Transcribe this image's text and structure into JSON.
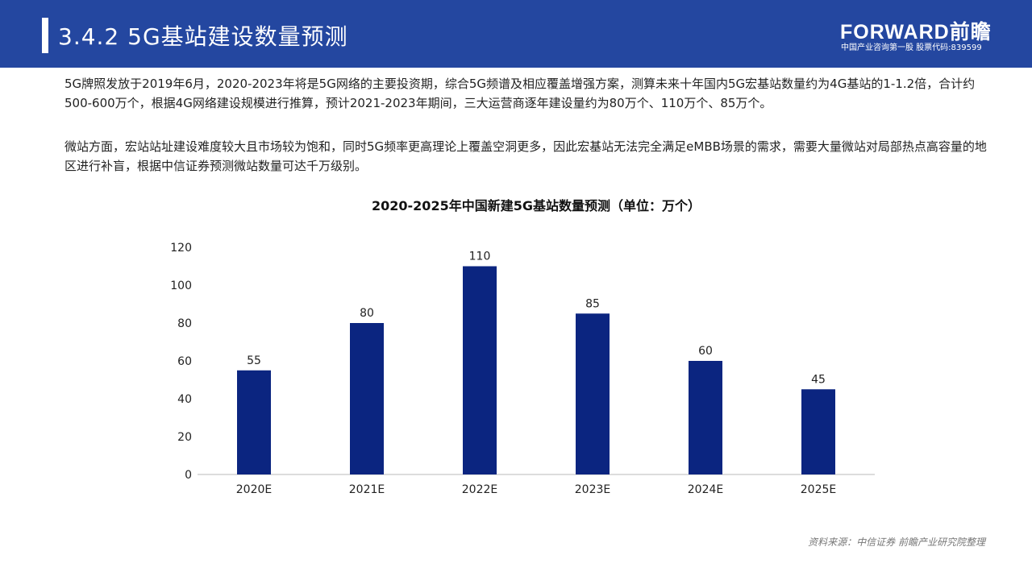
{
  "header": {
    "title": "3.4.2 5G基站建设数量预测",
    "logo_text": "FORWARD前瞻",
    "logo_subtitle": "中国产业咨询第一股 股票代码:839599",
    "background_color": "#2447a0"
  },
  "body": {
    "paragraphs": [
      "5G牌照发放于2019年6月，2020-2023年将是5G网络的主要投资期，综合5G频谱及相应覆盖增强方案，测算未来十年国内5G宏基站数量约为4G基站的1-1.2倍，合计约500-600万个，根据4G网络建设规模进行推算，预计2021-2023年期间，三大运营商逐年建设量约为80万个、110万个、85万个。",
      "微站方面，宏站站址建设难度较大且市场较为饱和，同时5G频率更高理论上覆盖空洞更多，因此宏基站无法完全满足eMBB场景的需求，需要大量微站对局部热点高容量的地区进行补盲，根据中信证券预测微站数量可达千万级别。"
    ]
  },
  "chart_data": {
    "type": "bar",
    "title": "2020-2025年中国新建5G基站数量预测（单位：万个）",
    "categories": [
      "2020E",
      "2021E",
      "2022E",
      "2023E",
      "2024E",
      "2025E"
    ],
    "values": [
      55,
      80,
      110,
      85,
      60,
      45
    ],
    "data_labels": [
      "55",
      "80",
      "110",
      "85",
      "60",
      "45"
    ],
    "yticks": [
      "0",
      "20",
      "40",
      "60",
      "80",
      "100",
      "120"
    ],
    "ylim": [
      0,
      120
    ],
    "grid": false,
    "bar_color": "#0b2580",
    "xlabel": "",
    "ylabel": ""
  },
  "footer": {
    "source": "资料来源：中信证券 前瞻产业研究院整理"
  }
}
